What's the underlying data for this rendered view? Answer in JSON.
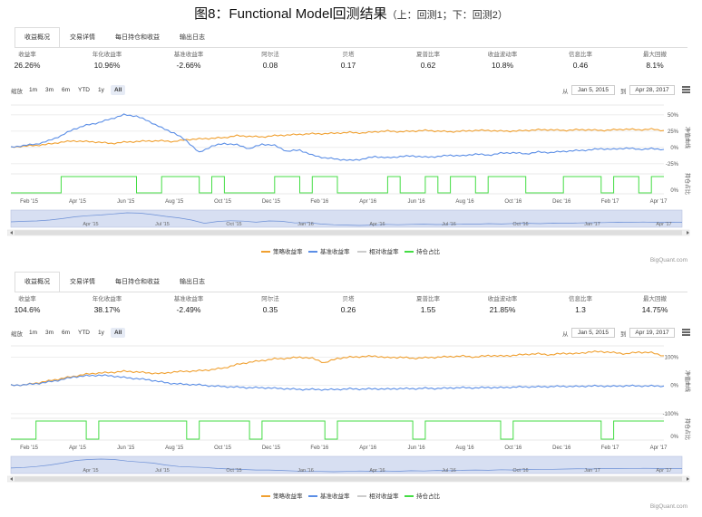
{
  "figure_title": "图8：Functional Model回测结果",
  "figure_subtitle": "（上：回测1；下：回测2）",
  "panels": [
    {
      "tabs": [
        "收益概况",
        "交易详情",
        "每日持仓和收益",
        "输出日志"
      ],
      "active_tab": 0,
      "stats": [
        {
          "label": "收益率",
          "value": "26.26%"
        },
        {
          "label": "年化收益率",
          "value": "10.96%"
        },
        {
          "label": "基准收益率",
          "value": "-2.66%"
        },
        {
          "label": "阿尔法",
          "value": "0.08"
        },
        {
          "label": "贝塔",
          "value": "0.17"
        },
        {
          "label": "夏普比率",
          "value": "0.62"
        },
        {
          "label": "收益波动率",
          "value": "10.8%"
        },
        {
          "label": "信息比率",
          "value": "0.46"
        },
        {
          "label": "最大回撤",
          "value": "8.1%"
        }
      ],
      "zoom_label": "缩放",
      "zoom_buttons": [
        "1m",
        "3m",
        "6m",
        "YTD",
        "1y",
        "All"
      ],
      "zoom_selected": 5,
      "from_label": "从",
      "from_date": "Jan 5, 2015",
      "to_label": "到",
      "to_date": "Apr 28, 2017",
      "right_labels": [
        "净值曲线",
        "持仓占比"
      ],
      "credit": "BigQuant.com",
      "legend": [
        {
          "name": "策略收益率",
          "color": "#f0a030"
        },
        {
          "name": "基准收益率",
          "color": "#5b8ee6"
        },
        {
          "name": "相对收益率",
          "color": "#cccccc"
        },
        {
          "name": "持仓占比",
          "color": "#44dd44"
        }
      ],
      "chart_data": {
        "type": "line",
        "x_start": "2015-01-05",
        "x_end": "2017-04-28",
        "x_ticks": [
          "Feb '15",
          "Apr '15",
          "Jun '15",
          "Aug '15",
          "Oct '15",
          "Dec '15",
          "Feb '16",
          "Apr '16",
          "Jun '16",
          "Aug '16",
          "Oct '16",
          "Dec '16",
          "Feb '17",
          "Apr '17"
        ],
        "navigator_ticks": [
          "Apr '15",
          "Jul '15",
          "Oct '15",
          "Jan '16",
          "Apr '16",
          "Jul '16",
          "Oct '16",
          "Jan '17",
          "Apr '17"
        ],
        "y_ticks_main": [
          "50%",
          "25%",
          "0%",
          "-25%"
        ],
        "y_ticks_position": [
          "0%"
        ],
        "ylim_main": [
          -35,
          65
        ],
        "series": [
          {
            "name": "策略收益率",
            "color": "#f0a030",
            "values": [
              0,
              2,
              3,
              5,
              8,
              10,
              9,
              8,
              6,
              8,
              9,
              10,
              10,
              9,
              12,
              13,
              14,
              15,
              18,
              17,
              16,
              18,
              19,
              20,
              21,
              21,
              22,
              23,
              22,
              24,
              25,
              24,
              25,
              26,
              25,
              24,
              25,
              26,
              26,
              25,
              25,
              26,
              27,
              27,
              26,
              27,
              27,
              26,
              27,
              28,
              27,
              28,
              26
            ]
          },
          {
            "name": "基准收益率",
            "color": "#5b8ee6",
            "values": [
              0,
              3,
              5,
              10,
              18,
              28,
              34,
              38,
              44,
              50,
              48,
              40,
              30,
              22,
              10,
              -8,
              2,
              6,
              4,
              -2,
              5,
              3,
              -6,
              -4,
              -12,
              -16,
              -18,
              -20,
              -18,
              -14,
              -16,
              -14,
              -13,
              -15,
              -14,
              -12,
              -13,
              -10,
              -12,
              -9,
              -8,
              -10,
              -7,
              -8,
              -6,
              -5,
              -4,
              -2,
              -3,
              -1,
              -3,
              -2,
              -3
            ]
          },
          {
            "name": "持仓占比",
            "color": "#44dd44",
            "values": [
              0,
              0,
              0,
              0,
              1,
              1,
              1,
              1,
              1,
              1,
              0,
              0,
              1,
              1,
              1,
              0,
              1,
              0,
              0,
              0,
              0,
              1,
              1,
              0,
              1,
              1,
              0,
              0,
              0,
              0,
              1,
              0,
              0,
              1,
              0,
              1,
              1,
              0,
              1,
              1,
              1,
              0,
              0,
              0,
              1,
              1,
              1,
              0,
              1,
              1,
              0,
              1,
              1
            ]
          }
        ]
      }
    },
    {
      "tabs": [
        "收益概况",
        "交易详情",
        "每日持仓和收益",
        "输出日志"
      ],
      "active_tab": 0,
      "stats": [
        {
          "label": "收益率",
          "value": "104.6%"
        },
        {
          "label": "年化收益率",
          "value": "38.17%"
        },
        {
          "label": "基准收益率",
          "value": "-2.49%"
        },
        {
          "label": "阿尔法",
          "value": "0.35"
        },
        {
          "label": "贝塔",
          "value": "0.26"
        },
        {
          "label": "夏普比率",
          "value": "1.55"
        },
        {
          "label": "收益波动率",
          "value": "21.85%"
        },
        {
          "label": "信息比率",
          "value": "1.3"
        },
        {
          "label": "最大回撤",
          "value": "14.75%"
        }
      ],
      "zoom_label": "缩放",
      "zoom_buttons": [
        "1m",
        "3m",
        "6m",
        "YTD",
        "1y",
        "All"
      ],
      "zoom_selected": 5,
      "from_label": "从",
      "from_date": "Jan 5, 2015",
      "to_label": "到",
      "to_date": "Apr 19, 2017",
      "right_labels": [
        "净值曲线",
        "持仓占比"
      ],
      "credit": "BigQuant.com",
      "legend": [
        {
          "name": "策略收益率",
          "color": "#f0a030"
        },
        {
          "name": "基准收益率",
          "color": "#5b8ee6"
        },
        {
          "name": "相对收益率",
          "color": "#cccccc"
        },
        {
          "name": "持仓占比",
          "color": "#44dd44"
        }
      ],
      "chart_data": {
        "type": "line",
        "x_start": "2015-01-05",
        "x_end": "2017-04-19",
        "x_ticks": [
          "Feb '15",
          "Apr '15",
          "Jun '15",
          "Aug '15",
          "Oct '15",
          "Dec '15",
          "Feb '16",
          "Apr '16",
          "Jun '16",
          "Aug '16",
          "Oct '16",
          "Dec '16",
          "Feb '17",
          "Apr '17"
        ],
        "navigator_ticks": [
          "Apr '15",
          "Jul '15",
          "Oct '15",
          "Jan '16",
          "Apr '16",
          "Jul '16",
          "Oct '16",
          "Jan '17",
          "Apr '17"
        ],
        "y_ticks_main": [
          "100%",
          "0%",
          "-100%"
        ],
        "y_ticks_position": [
          "0%"
        ],
        "ylim_main": [
          -110,
          140
        ],
        "series": [
          {
            "name": "策略收益率",
            "color": "#f0a030",
            "values": [
              0,
              2,
              8,
              16,
              24,
              32,
              40,
              44,
              46,
              50,
              48,
              44,
              42,
              48,
              50,
              52,
              56,
              62,
              74,
              82,
              88,
              94,
              96,
              100,
              96,
              80,
              96,
              100,
              102,
              104,
              98,
              100,
              96,
              98,
              100,
              102,
              104,
              100,
              106,
              104,
              106,
              110,
              112,
              108,
              114,
              112,
              118,
              120,
              116,
              112,
              118,
              116,
              105
            ]
          },
          {
            "name": "基准收益率",
            "color": "#5b8ee6",
            "values": [
              0,
              2,
              6,
              12,
              20,
              30,
              34,
              36,
              34,
              28,
              24,
              20,
              12,
              6,
              4,
              2,
              -2,
              -4,
              -6,
              -8,
              -8,
              -10,
              -12,
              -14,
              -14,
              -15,
              -14,
              -12,
              -13,
              -12,
              -13,
              -11,
              -12,
              -10,
              -11,
              -9,
              -8,
              -9,
              -7,
              -8,
              -6,
              -5,
              -5,
              -4,
              -3,
              -4,
              -2,
              -2,
              -3,
              -1,
              -2,
              -2,
              -2
            ]
          },
          {
            "name": "持仓占比",
            "color": "#44dd44",
            "values": [
              0,
              0,
              1,
              1,
              1,
              1,
              0,
              1,
              1,
              1,
              1,
              1,
              1,
              1,
              0,
              1,
              1,
              1,
              1,
              0,
              1,
              1,
              1,
              1,
              1,
              0,
              1,
              1,
              1,
              1,
              1,
              1,
              0,
              1,
              1,
              1,
              1,
              1,
              1,
              0,
              1,
              1,
              1,
              1,
              1,
              1,
              1,
              0,
              1,
              1,
              1,
              1,
              1
            ]
          }
        ]
      }
    }
  ]
}
